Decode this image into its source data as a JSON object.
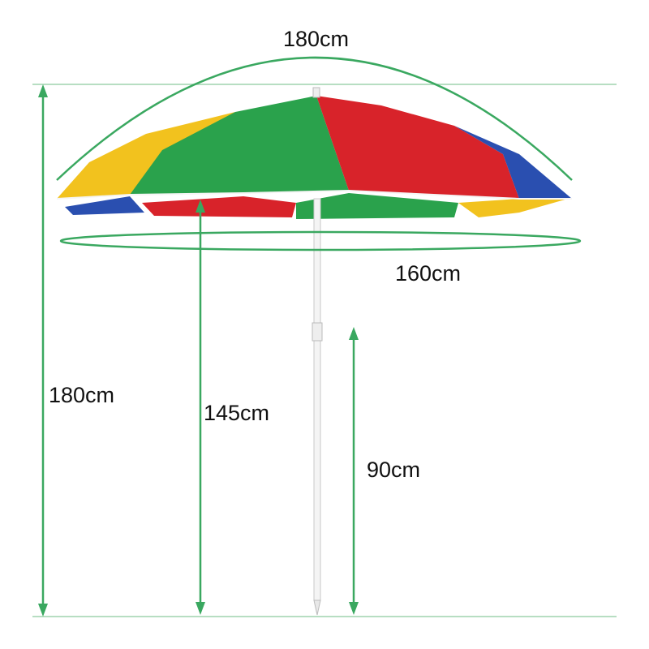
{
  "dimensions": {
    "canopy_arc": "180cm",
    "canopy_diameter": "160cm",
    "total_height": "180cm",
    "canopy_to_ground": "145cm",
    "lower_pole": "90cm"
  },
  "colors": {
    "guide": "#3aa860",
    "guide_light": "#9fd4ae",
    "yellow": "#f2c21e",
    "green": "#2aa24c",
    "red": "#d8232a",
    "blue": "#2a4fb0",
    "pole": "#f4f4f4"
  }
}
